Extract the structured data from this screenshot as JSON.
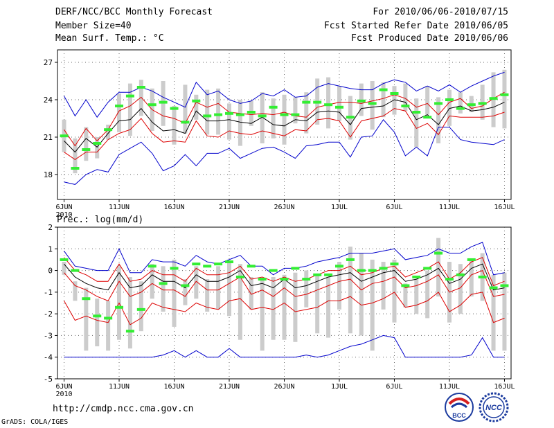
{
  "header": {
    "title": "DERF/NCC/BCC Monthly Forecast",
    "member_size": "Member Size=40",
    "variable": "Mean Surf. Temp.: °C",
    "period": "For 2010/06/06-2010/07/15",
    "refer_date": "Fcst Started Refer Date 2010/06/05",
    "produced_date": "Fcst Produced Date 2010/06/06"
  },
  "footer": {
    "url": "http://cmdp.ncc.cma.gov.cn",
    "credit": "GrADS: COLA/IGES",
    "logo1_text": "BCC",
    "logo2_text": "NCC"
  },
  "colors": {
    "blue": "#0000cc",
    "red": "#dd0000",
    "black": "#000000",
    "green": "#33ee33",
    "box": "#cccccc",
    "grid": "#666666"
  },
  "chart_data": [
    {
      "type": "line",
      "panel": "temperature",
      "ylabel": "Mean Surf. Temp.: °C",
      "ylim": [
        16,
        28
      ],
      "yticks": [
        18,
        21,
        24,
        27
      ],
      "x_start_day": 1,
      "x_end_day": 41,
      "xticks": [
        {
          "day": 1,
          "label": "6JUN"
        },
        {
          "day": 6,
          "label": "11JUN"
        },
        {
          "day": 11,
          "label": "16JUN"
        },
        {
          "day": 16,
          "label": "21JUN"
        },
        {
          "day": 21,
          "label": "26JUN"
        },
        {
          "day": 26,
          "label": "1JUL"
        },
        {
          "day": 31,
          "label": "6JUL"
        },
        {
          "day": 36,
          "label": "11JUL"
        },
        {
          "day": 41,
          "label": "16JUL"
        }
      ],
      "year_label": "2010",
      "max": [
        24.3,
        22.7,
        24.0,
        22.6,
        23.8,
        24.6,
        24.6,
        25.0,
        24.7,
        24.2,
        23.8,
        23.4,
        25.4,
        24.4,
        24.7,
        24.0,
        23.7,
        23.9,
        24.5,
        24.3,
        24.8,
        24.2,
        24.3,
        25.0,
        25.3,
        25.1,
        24.9,
        24.8,
        24.8,
        25.3,
        25.6,
        25.4,
        24.7,
        25.1,
        24.7,
        25.2,
        24.6,
        25.1,
        25.5,
        25.9,
        26.2
      ],
      "upper": [
        21.6,
        20.3,
        21.7,
        20.7,
        21.6,
        23.1,
        23.5,
        24.2,
        23.2,
        22.7,
        22.5,
        22.1,
        23.8,
        23.4,
        23.7,
        23.0,
        22.9,
        22.8,
        22.9,
        22.8,
        23.0,
        22.7,
        22.6,
        23.4,
        23.6,
        23.8,
        23.8,
        23.7,
        23.9,
        24.1,
        24.4,
        24.1,
        23.4,
        23.7,
        22.8,
        23.8,
        24.1,
        23.3,
        23.5,
        24.1,
        24.6
      ],
      "mean": [
        20.7,
        19.8,
        20.9,
        20.2,
        21.3,
        22.3,
        22.4,
        23.3,
        22.2,
        21.5,
        21.6,
        21.3,
        23.1,
        22.3,
        22.3,
        22.4,
        22.2,
        22.1,
        22.6,
        22.0,
        21.9,
        22.4,
        22.3,
        23.0,
        23.1,
        23.0,
        22.0,
        23.3,
        23.4,
        23.5,
        24.0,
        23.8,
        22.4,
        22.8,
        22.0,
        23.3,
        23.5,
        23.1,
        23.2,
        23.4,
        23.8
      ],
      "lower": [
        19.8,
        19.2,
        19.8,
        19.8,
        20.8,
        21.3,
        21.6,
        22.5,
        21.3,
        20.6,
        20.7,
        20.6,
        22.3,
        21.1,
        21.0,
        21.5,
        21.3,
        21.2,
        21.5,
        21.3,
        21.1,
        21.6,
        21.5,
        22.4,
        22.5,
        22.3,
        21.0,
        22.3,
        22.5,
        22.7,
        23.3,
        23.1,
        21.7,
        22.1,
        21.2,
        22.7,
        22.6,
        22.6,
        22.6,
        22.7,
        23.0
      ],
      "min": [
        17.4,
        17.2,
        18.0,
        18.4,
        18.2,
        19.6,
        20.1,
        20.6,
        19.7,
        18.3,
        18.7,
        19.6,
        18.7,
        19.7,
        19.7,
        20.1,
        19.3,
        19.7,
        20.1,
        20.2,
        19.8,
        19.3,
        20.3,
        20.4,
        20.6,
        20.6,
        19.4,
        21.0,
        21.1,
        22.4,
        21.4,
        19.5,
        20.2,
        19.5,
        21.8,
        21.8,
        20.8,
        20.6,
        20.5,
        20.4,
        20.8
      ],
      "box_top": [
        22.4,
        20.9,
        21.8,
        21.0,
        22.0,
        24.5,
        25.3,
        25.6,
        24.9,
        25.5,
        23.5,
        25.2,
        24.4,
        24.8,
        24.9,
        23.7,
        24.0,
        23.9,
        24.6,
        24.1,
        24.4,
        24.2,
        24.6,
        25.7,
        25.8,
        25.1,
        24.3,
        25.3,
        25.5,
        25.4,
        25.1,
        25.3,
        24.1,
        25.1,
        24.2,
        24.8,
        24.6,
        24.3,
        25.2,
        26.2,
        26.4
      ],
      "box_bottom": [
        19.8,
        18.1,
        19.1,
        19.3,
        20.8,
        21.4,
        21.1,
        22.7,
        21.5,
        21.9,
        20.4,
        21.3,
        22.4,
        21.2,
        21.2,
        20.8,
        20.3,
        21.9,
        20.5,
        20.9,
        20.4,
        22.1,
        21.3,
        22.0,
        21.7,
        22.3,
        20.8,
        22.7,
        21.6,
        22.6,
        22.8,
        23.1,
        20.2,
        22.8,
        20.5,
        21.9,
        22.9,
        23.0,
        22.4,
        21.8,
        21.7
      ],
      "median": [
        21.1,
        18.5,
        20.0,
        20.5,
        21.6,
        23.5,
        24.3,
        25.0,
        23.6,
        23.8,
        23.3,
        22.2,
        23.9,
        22.7,
        22.8,
        22.9,
        22.8,
        23.0,
        22.7,
        23.4,
        22.8,
        22.8,
        23.8,
        23.8,
        23.6,
        23.4,
        22.6,
        23.9,
        23.7,
        24.8,
        24.5,
        23.5,
        23.0,
        22.6,
        23.7,
        24.0,
        23.3,
        23.6,
        23.7,
        24.1,
        24.4
      ]
    },
    {
      "type": "line",
      "panel": "precipitation",
      "ylabel": "Prec.: log(mm/d)",
      "ylim": [
        -5,
        2
      ],
      "yticks": [
        -5,
        -4,
        -3,
        -2,
        -1,
        0,
        1,
        2
      ],
      "x_start_day": 1,
      "x_end_day": 41,
      "xticks": [
        {
          "day": 1,
          "label": "6JUN"
        },
        {
          "day": 6,
          "label": "11JUN"
        },
        {
          "day": 11,
          "label": "16JUN"
        },
        {
          "day": 16,
          "label": "21JUN"
        },
        {
          "day": 21,
          "label": "26JUN"
        },
        {
          "day": 26,
          "label": "1JUL"
        },
        {
          "day": 31,
          "label": "6JUL"
        },
        {
          "day": 36,
          "label": "11JUL"
        },
        {
          "day": 41,
          "label": "16JUL"
        }
      ],
      "year_label": "2010",
      "max": [
        0.9,
        0.2,
        0.1,
        0.0,
        0.0,
        1.0,
        -0.1,
        -0.1,
        0.5,
        0.4,
        0.4,
        0.2,
        0.7,
        0.4,
        0.3,
        0.5,
        0.7,
        0.2,
        0.2,
        -0.2,
        0.1,
        0.1,
        0.2,
        0.4,
        0.5,
        0.6,
        0.8,
        0.8,
        0.8,
        0.9,
        1.0,
        0.5,
        0.6,
        0.7,
        1.0,
        0.8,
        0.8,
        1.1,
        1.3,
        -0.2,
        -0.1
      ],
      "upper": [
        0.6,
        0.0,
        -0.2,
        -0.5,
        -0.5,
        0.3,
        -0.5,
        -0.4,
        0.0,
        -0.2,
        -0.2,
        -0.5,
        0.1,
        -0.2,
        -0.2,
        -0.1,
        0.2,
        -0.4,
        -0.3,
        -0.5,
        -0.3,
        -0.5,
        -0.4,
        -0.2,
        0.0,
        0.0,
        0.2,
        -0.2,
        -0.1,
        0.1,
        0.2,
        -0.3,
        -0.1,
        0.1,
        0.4,
        -0.4,
        -0.1,
        0.4,
        0.6,
        -0.7,
        -0.5
      ],
      "mean": [
        0.3,
        -0.3,
        -0.6,
        -0.8,
        -0.9,
        -0.1,
        -0.8,
        -0.7,
        -0.2,
        -0.5,
        -0.5,
        -0.8,
        -0.2,
        -0.5,
        -0.5,
        -0.3,
        0.0,
        -0.7,
        -0.6,
        -0.8,
        -0.4,
        -0.8,
        -0.7,
        -0.5,
        -0.3,
        -0.2,
        -0.1,
        -0.5,
        -0.3,
        -0.1,
        0.0,
        -0.5,
        -0.4,
        -0.2,
        0.1,
        -0.6,
        -0.4,
        0.1,
        0.3,
        -0.9,
        -0.8
      ],
      "lower": [
        -0.1,
        -0.7,
        -0.9,
        -1.2,
        -1.4,
        -0.5,
        -1.2,
        -1.0,
        -0.6,
        -0.9,
        -0.9,
        -1.2,
        -0.5,
        -0.9,
        -0.9,
        -0.6,
        -0.3,
        -1.1,
        -0.9,
        -1.2,
        -0.8,
        -1.2,
        -1.1,
        -0.9,
        -0.7,
        -0.5,
        -0.4,
        -0.9,
        -0.6,
        -0.5,
        -0.3,
        -0.8,
        -0.7,
        -0.5,
        -0.2,
        -1.0,
        -0.8,
        -0.2,
        0.0,
        -1.2,
        -1.1
      ],
      "min2": [
        -1.4,
        -2.3,
        -2.1,
        -2.3,
        -2.4,
        -1.5,
        -2.5,
        -2.2,
        -1.5,
        -1.7,
        -1.8,
        -1.9,
        -1.5,
        -1.7,
        -1.8,
        -1.4,
        -1.3,
        -1.8,
        -1.7,
        -1.8,
        -1.5,
        -1.9,
        -1.8,
        -1.7,
        -1.4,
        -1.4,
        -1.2,
        -1.6,
        -1.5,
        -1.3,
        -1.0,
        -1.7,
        -1.6,
        -1.4,
        -1.0,
        -1.9,
        -1.6,
        -1.1,
        -1.0,
        -2.4,
        -2.2
      ],
      "min": [
        -4.0,
        -4.0,
        -4.0,
        -4.0,
        -4.0,
        -4.0,
        -4.0,
        -4.0,
        -4.0,
        -3.9,
        -3.7,
        -4.0,
        -3.7,
        -4.0,
        -4.0,
        -3.6,
        -4.0,
        -4.0,
        -4.0,
        -4.0,
        -4.0,
        -4.0,
        -3.9,
        -4.0,
        -3.9,
        -3.7,
        -3.5,
        -3.4,
        -3.2,
        -3.0,
        -3.1,
        -4.0,
        -4.0,
        -4.0,
        -4.0,
        -4.0,
        -4.0,
        -3.9,
        -3.1,
        -4.0,
        -4.0
      ],
      "box_top": [
        0.4,
        -0.5,
        -0.8,
        -1.3,
        -1.4,
        0.2,
        -0.3,
        -0.5,
        0.3,
        0.2,
        0.5,
        -0.4,
        0.2,
        -0.4,
        0.2,
        0.4,
        0.3,
        -0.3,
        -0.4,
        -0.3,
        -0.2,
        -0.1,
        0.0,
        -0.2,
        -0.3,
        0.4,
        1.1,
        0.8,
        0.5,
        0.4,
        0.5,
        -0.6,
        -0.4,
        0.0,
        1.5,
        0.4,
        0.3,
        0.5,
        0.8,
        -0.2,
        -0.1
      ],
      "box_bottom": [
        -0.2,
        -1.4,
        -3.7,
        -3.5,
        -3.7,
        -3.2,
        -3.6,
        -2.8,
        -1.3,
        -1.9,
        -2.6,
        -1.6,
        -1.3,
        -1.9,
        -1.8,
        -2.1,
        -3.2,
        -1.8,
        -3.7,
        -3.2,
        -3.2,
        -3.3,
        -1.7,
        -2.9,
        -3.1,
        -1.8,
        -2.9,
        -3.0,
        -3.7,
        -1.8,
        -2.4,
        -1.7,
        -2.0,
        -2.2,
        -1.2,
        -2.4,
        -2.0,
        -1.2,
        -1.4,
        -3.7,
        -3.7
      ],
      "median": [
        0.5,
        0.0,
        -1.3,
        -2.1,
        -2.2,
        -1.7,
        -2.8,
        -1.8,
        0.2,
        -0.6,
        0.1,
        -0.7,
        0.3,
        0.2,
        0.3,
        0.4,
        -0.3,
        0.2,
        -0.4,
        0.0,
        -0.4,
        0.1,
        -0.4,
        -0.2,
        -0.2,
        0.2,
        0.5,
        0.0,
        0.0,
        0.1,
        0.3,
        -0.7,
        -0.3,
        0.1,
        0.8,
        -0.4,
        -0.2,
        0.5,
        -0.3,
        -0.8,
        -0.7
      ]
    }
  ]
}
